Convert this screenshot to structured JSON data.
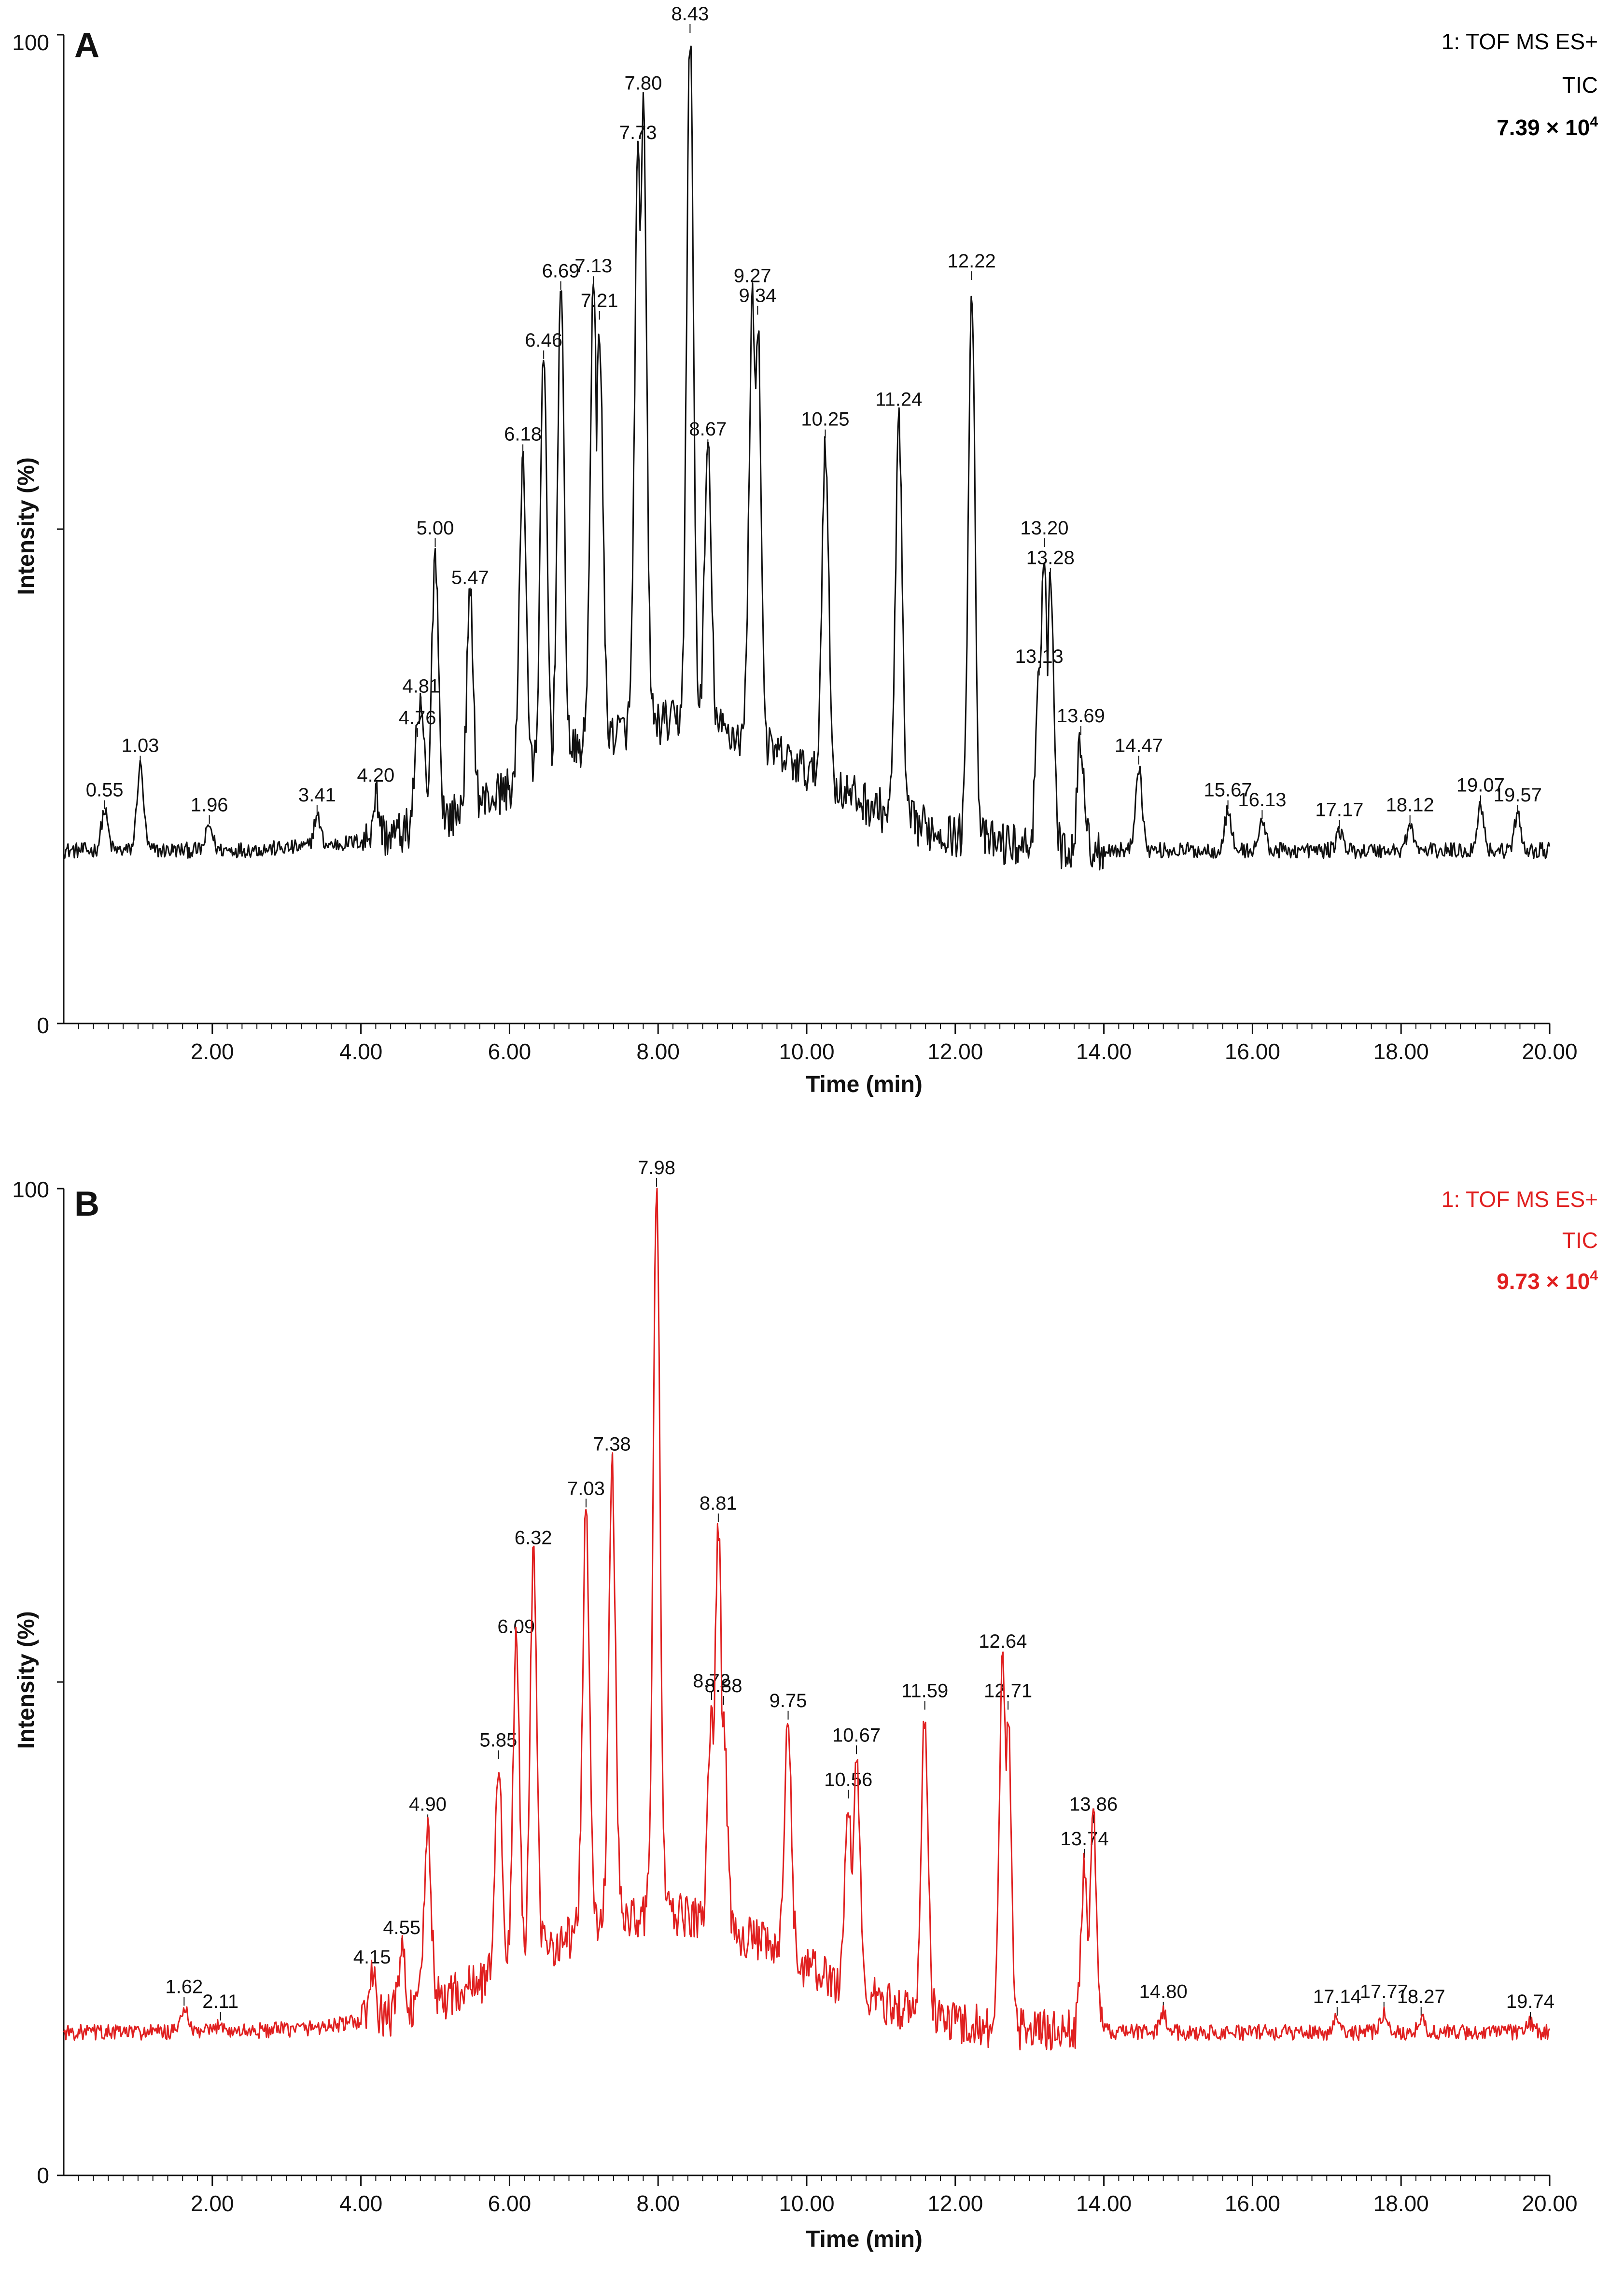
{
  "chart_data": [
    {
      "type": "line",
      "panel": "A",
      "color": "#111111",
      "instrument": "1: TOF MS ES+",
      "trace": "TIC",
      "max_intensity": "7.39 × 10",
      "max_intensity_exp": "4",
      "xlabel": "Time (min)",
      "ylabel": "Intensity (%)",
      "xlim": [
        0,
        20
      ],
      "ylim": [
        0,
        100
      ],
      "x_ticks": [
        "2.00",
        "4.00",
        "6.00",
        "8.00",
        "10.00",
        "12.00",
        "14.00",
        "16.00",
        "18.00",
        "20.00"
      ],
      "y_ticks": [
        "0",
        "100"
      ],
      "baseline": 17.5,
      "peaks": [
        {
          "t": 0.55,
          "label": "0.55",
          "i": 21.5
        },
        {
          "t": 1.03,
          "label": "1.03",
          "i": 26.0
        },
        {
          "t": 1.96,
          "label": "1.96",
          "i": 20.0
        },
        {
          "t": 3.41,
          "label": "3.41",
          "i": 21.0
        },
        {
          "t": 4.2,
          "label": "4.20",
          "i": 23.0
        },
        {
          "t": 4.76,
          "label": "4.76",
          "i": 28.8
        },
        {
          "t": 4.81,
          "label": "4.81",
          "i": 32.0
        },
        {
          "t": 5.0,
          "label": "5.00",
          "i": 48.0
        },
        {
          "t": 5.47,
          "label": "5.47",
          "i": 43.0
        },
        {
          "t": 6.18,
          "label": "6.18",
          "i": 57.5
        },
        {
          "t": 6.46,
          "label": "6.46",
          "i": 67.0
        },
        {
          "t": 6.69,
          "label": "6.69",
          "i": 74.0
        },
        {
          "t": 7.13,
          "label": "7.13",
          "i": 74.5
        },
        {
          "t": 7.21,
          "label": "7.21",
          "i": 71.0
        },
        {
          "t": 7.73,
          "label": "7.73",
          "i": 88.0
        },
        {
          "t": 7.8,
          "label": "7.80",
          "i": 93.0
        },
        {
          "t": 8.43,
          "label": "8.43",
          "i": 100.0
        },
        {
          "t": 8.67,
          "label": "8.67",
          "i": 58.0
        },
        {
          "t": 9.27,
          "label": "9.27",
          "i": 73.5
        },
        {
          "t": 9.34,
          "label": "9.34",
          "i": 71.5
        },
        {
          "t": 10.25,
          "label": "10.25",
          "i": 59.0
        },
        {
          "t": 11.24,
          "label": "11.24",
          "i": 61.0
        },
        {
          "t": 12.22,
          "label": "12.22",
          "i": 75.0
        },
        {
          "t": 13.13,
          "label": "13.13",
          "i": 35.0
        },
        {
          "t": 13.2,
          "label": "13.20",
          "i": 48.0
        },
        {
          "t": 13.28,
          "label": "13.28",
          "i": 45.0
        },
        {
          "t": 13.69,
          "label": "13.69",
          "i": 29.0
        },
        {
          "t": 14.47,
          "label": "14.47",
          "i": 26.0
        },
        {
          "t": 15.67,
          "label": "15.67",
          "i": 21.5
        },
        {
          "t": 16.13,
          "label": "16.13",
          "i": 20.5
        },
        {
          "t": 17.17,
          "label": "17.17",
          "i": 19.5
        },
        {
          "t": 18.12,
          "label": "18.12",
          "i": 20.0
        },
        {
          "t": 19.07,
          "label": "19.07",
          "i": 22.0
        },
        {
          "t": 19.57,
          "label": "19.57",
          "i": 21.0
        }
      ]
    },
    {
      "type": "line",
      "panel": "B",
      "color": "#e02020",
      "instrument": "1: TOF MS ES+",
      "trace": "TIC",
      "max_intensity": "9.73 × 10",
      "max_intensity_exp": "4",
      "xlabel": "Time (min)",
      "ylabel": "Intensity (%)",
      "xlim": [
        0,
        20
      ],
      "ylim": [
        0,
        100
      ],
      "x_ticks": [
        "2.00",
        "4.00",
        "6.00",
        "8.00",
        "10.00",
        "12.00",
        "14.00",
        "16.00",
        "18.00",
        "20.00"
      ],
      "y_ticks": [
        "0",
        "100"
      ],
      "baseline": 14.5,
      "peaks": [
        {
          "t": 1.62,
          "label": "1.62",
          "i": 17.0
        },
        {
          "t": 2.11,
          "label": "2.11",
          "i": 15.5
        },
        {
          "t": 4.15,
          "label": "4.15",
          "i": 20.0
        },
        {
          "t": 4.55,
          "label": "4.55",
          "i": 23.0
        },
        {
          "t": 4.9,
          "label": "4.90",
          "i": 35.5
        },
        {
          "t": 5.85,
          "label": "5.85",
          "i": 42.0
        },
        {
          "t": 6.09,
          "label": "6.09",
          "i": 53.5
        },
        {
          "t": 6.32,
          "label": "6.32",
          "i": 62.5
        },
        {
          "t": 7.03,
          "label": "7.03",
          "i": 67.5
        },
        {
          "t": 7.38,
          "label": "7.38",
          "i": 72.0
        },
        {
          "t": 7.98,
          "label": "7.98",
          "i": 100.0
        },
        {
          "t": 8.72,
          "label": "8.72",
          "i": 48.0
        },
        {
          "t": 8.81,
          "label": "8.81",
          "i": 66.0
        },
        {
          "t": 8.88,
          "label": "8.88",
          "i": 47.5
        },
        {
          "t": 9.75,
          "label": "9.75",
          "i": 46.0
        },
        {
          "t": 10.56,
          "label": "10.56",
          "i": 38.0
        },
        {
          "t": 10.67,
          "label": "10.67",
          "i": 42.5
        },
        {
          "t": 11.59,
          "label": "11.59",
          "i": 47.0
        },
        {
          "t": 12.64,
          "label": "12.64",
          "i": 52.0
        },
        {
          "t": 12.71,
          "label": "12.71",
          "i": 47.0
        },
        {
          "t": 13.74,
          "label": "13.74",
          "i": 32.0
        },
        {
          "t": 13.86,
          "label": "13.86",
          "i": 35.5
        },
        {
          "t": 14.8,
          "label": "14.80",
          "i": 16.5
        },
        {
          "t": 17.14,
          "label": "17.14",
          "i": 16.0
        },
        {
          "t": 17.77,
          "label": "17.77",
          "i": 16.5
        },
        {
          "t": 18.27,
          "label": "18.27",
          "i": 16.0
        },
        {
          "t": 19.74,
          "label": "19.74",
          "i": 15.5
        }
      ]
    }
  ]
}
